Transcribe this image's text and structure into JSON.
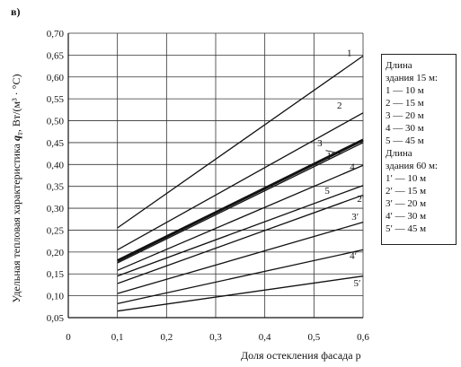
{
  "panel_label": "в)",
  "chart_data": {
    "type": "line",
    "xlabel": "Доля остекления фасада p",
    "ylabel": {
      "pre": "Удельная тепловая характеристика ",
      "symbol": "q",
      "sub": "т",
      "post": ", Вт/(м³ · °C)"
    },
    "xlim": [
      0,
      0.6
    ],
    "ylim": [
      0.05,
      0.7
    ],
    "x_ticks": [
      "0",
      "0,1",
      "0,2",
      "0,3",
      "0,4",
      "0,5",
      "0,6"
    ],
    "y_ticks": [
      "0,05",
      "0,10",
      "0,15",
      "0,20",
      "0,25",
      "0,30",
      "0,35",
      "0,40",
      "0,45",
      "0,50",
      "0,55",
      "0,60",
      "0,65",
      "0,70"
    ],
    "grid": true,
    "series": [
      {
        "name": "1",
        "x": [
          0.1,
          0.6
        ],
        "y": [
          0.255,
          0.648
        ],
        "bold": false
      },
      {
        "name": "2",
        "x": [
          0.1,
          0.6
        ],
        "y": [
          0.205,
          0.518
        ],
        "bold": false
      },
      {
        "name": "3",
        "x": [
          0.1,
          0.6
        ],
        "y": [
          0.18,
          0.456
        ],
        "bold": true
      },
      {
        "name": "1'",
        "x": [
          0.1,
          0.6
        ],
        "y": [
          0.175,
          0.45
        ],
        "bold": false
      },
      {
        "name": "4",
        "x": [
          0.1,
          0.6
        ],
        "y": [
          0.158,
          0.398
        ],
        "bold": false
      },
      {
        "name": "5",
        "x": [
          0.1,
          0.6
        ],
        "y": [
          0.145,
          0.352
        ],
        "bold": false
      },
      {
        "name": "2'",
        "x": [
          0.1,
          0.6
        ],
        "y": [
          0.128,
          0.33
        ],
        "bold": false
      },
      {
        "name": "3'",
        "x": [
          0.1,
          0.6
        ],
        "y": [
          0.105,
          0.268
        ],
        "bold": false
      },
      {
        "name": "4'",
        "x": [
          0.1,
          0.6
        ],
        "y": [
          0.082,
          0.205
        ],
        "bold": false
      },
      {
        "name": "5'",
        "x": [
          0.1,
          0.6
        ],
        "y": [
          0.065,
          0.145
        ],
        "bold": false
      }
    ],
    "curve_labels": [
      {
        "text": "1",
        "x": 0.572,
        "y": 0.648
      },
      {
        "text": "2",
        "x": 0.552,
        "y": 0.528
      },
      {
        "text": "3",
        "x": 0.512,
        "y": 0.442
      },
      {
        "text": "1′",
        "x": 0.533,
        "y": 0.413
      },
      {
        "text": "4",
        "x": 0.578,
        "y": 0.387
      },
      {
        "text": "5",
        "x": 0.527,
        "y": 0.333
      },
      {
        "text": "2′",
        "x": 0.595,
        "y": 0.315
      },
      {
        "text": "3′",
        "x": 0.584,
        "y": 0.274
      },
      {
        "text": "4′",
        "x": 0.58,
        "y": 0.184
      },
      {
        "text": "5′",
        "x": 0.588,
        "y": 0.122
      }
    ],
    "label_leaders": [
      {
        "x1": 0.524,
        "y1": 0.432,
        "x2": 0.555,
        "y2": 0.425
      }
    ]
  },
  "legend": {
    "lines": [
      "Длина",
      "здания 15 м:",
      "1 — 10 м",
      "2 — 15 м",
      "3 — 20 м",
      "4 — 30 м",
      "5 — 45 м",
      "Длина",
      "здания 60 м:",
      "1′ — 10 м",
      "2′ — 15 м",
      "3′ — 20 м",
      "4′ — 30 м",
      "5′ — 45 м"
    ]
  }
}
